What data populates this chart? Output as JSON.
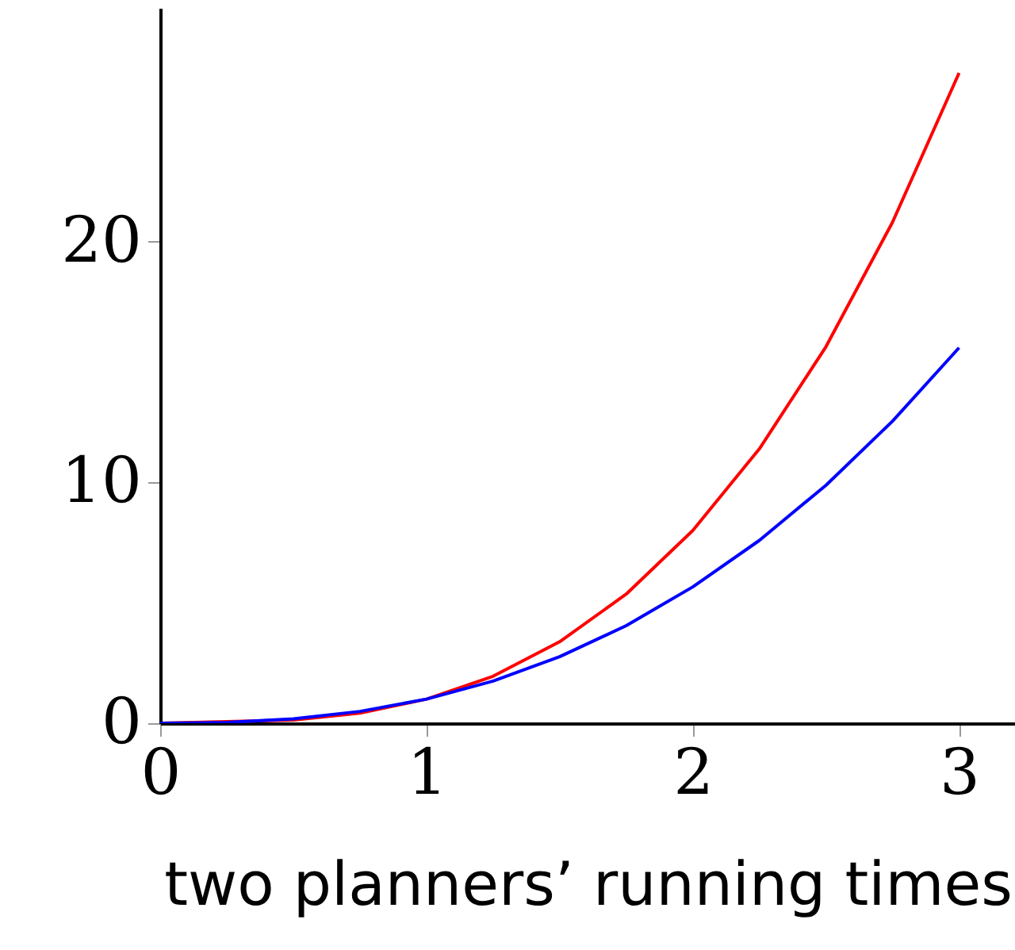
{
  "chart_data": {
    "type": "line",
    "xlabel": "two planners’ running times",
    "x": [
      0,
      0.25,
      0.5,
      0.75,
      1,
      1.25,
      1.5,
      1.75,
      2,
      2.25,
      2.5,
      2.75,
      3
    ],
    "series": [
      {
        "color": "#ff0000",
        "values": [
          0,
          null,
          0.13,
          0.42,
          1,
          1.95,
          3.38,
          5.36,
          8,
          11.39,
          15.63,
          20.8,
          27
        ]
      },
      {
        "color": "#0000ff",
        "values": [
          0,
          0.03,
          0.18,
          0.49,
          1,
          1.75,
          2.76,
          4.05,
          5.66,
          7.59,
          9.88,
          12.54,
          15.59
        ]
      }
    ],
    "xlim": [
      0,
      3.21
    ],
    "ylim": [
      0,
      29.7
    ],
    "xticks": [
      0,
      1,
      2,
      3
    ],
    "yticks": [
      0,
      10,
      20
    ],
    "grid": false,
    "marker": "none",
    "line_style": "solid"
  }
}
